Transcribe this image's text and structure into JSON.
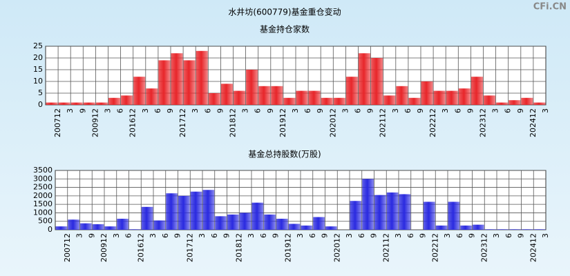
{
  "header": {
    "title": "水井坊(600779)基金重仓变动",
    "watermark": "CFi.CN"
  },
  "chart_data": [
    {
      "type": "bar",
      "title": "基金持仓家数",
      "color": "#e8262a",
      "categories": [
        "200712",
        "3",
        "9",
        "200912",
        "3",
        "6",
        "201612",
        "3",
        "6",
        "9",
        "201712",
        "3",
        "6",
        "9",
        "201812",
        "3",
        "6",
        "9",
        "201912",
        "3",
        "6",
        "9",
        "202012",
        "3",
        "6",
        "9",
        "202112",
        "3",
        "6",
        "9",
        "202212",
        "3",
        "6",
        "9",
        "202312",
        "3",
        "6",
        "9",
        "202412",
        "3"
      ],
      "values": [
        1,
        1,
        1,
        1,
        1,
        3,
        4,
        12,
        7,
        19,
        22,
        19,
        23,
        5,
        9,
        6,
        15,
        8,
        8,
        3,
        6,
        6,
        3,
        3,
        12,
        22,
        20,
        4,
        8,
        3,
        10,
        6,
        6,
        7,
        12,
        4,
        1,
        2,
        3,
        1
      ],
      "ylim": [
        0,
        25
      ],
      "yticks": [
        0,
        5,
        10,
        15,
        20,
        25
      ],
      "grid": true
    },
    {
      "type": "bar",
      "title": "基金总持股数(万股)",
      "color": "#2a2ae0",
      "categories": [
        "200712",
        "3",
        "9",
        "200912",
        "3",
        "6",
        "201612",
        "3",
        "6",
        "9",
        "201712",
        "3",
        "6",
        "9",
        "201812",
        "3",
        "6",
        "9",
        "201912",
        "3",
        "6",
        "9",
        "202012",
        "3",
        "6",
        "9",
        "202112",
        "3",
        "6",
        "9",
        "202212",
        "3",
        "6",
        "9",
        "202312",
        "3",
        "6",
        "9",
        "202412",
        "3"
      ],
      "values": [
        200,
        600,
        380,
        330,
        200,
        650,
        30,
        1350,
        550,
        2150,
        2000,
        2250,
        2350,
        800,
        900,
        1000,
        1600,
        900,
        650,
        350,
        250,
        750,
        200,
        0,
        1700,
        3000,
        2050,
        2200,
        2100,
        0,
        1650,
        250,
        1650,
        250,
        300,
        30,
        30,
        30,
        30,
        30
      ],
      "ylim": [
        0,
        3500
      ],
      "yticks": [
        0,
        500,
        1000,
        1500,
        2000,
        2500,
        3000,
        3500
      ],
      "grid": true
    }
  ]
}
